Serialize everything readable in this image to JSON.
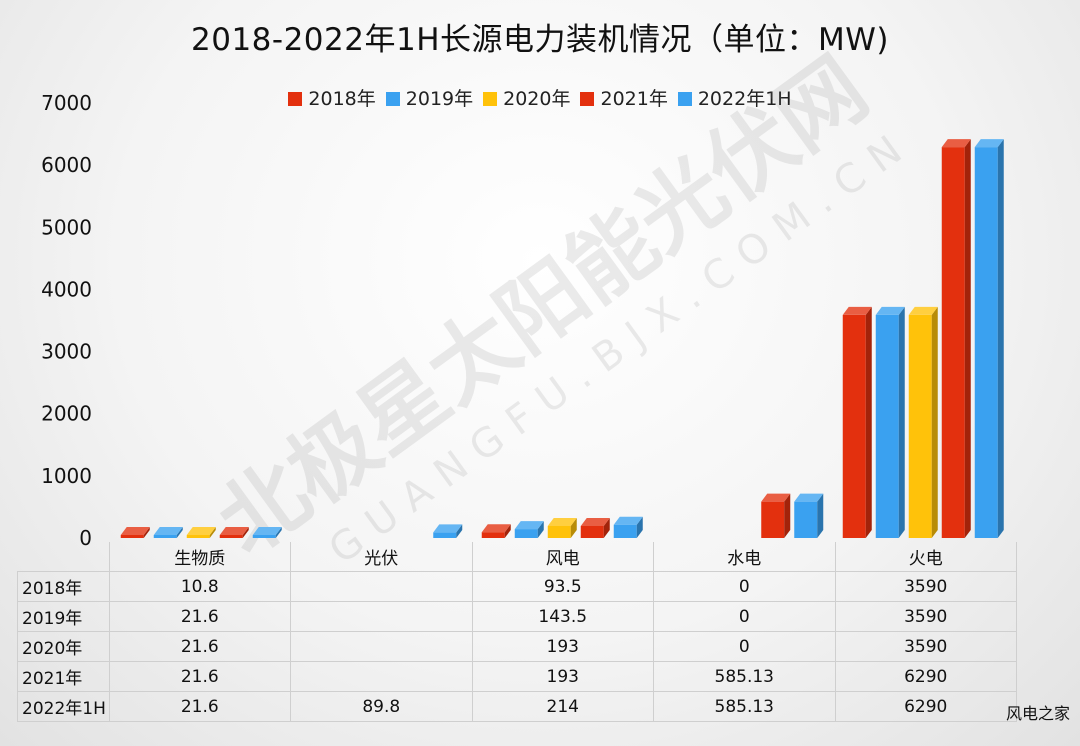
{
  "chart_data": {
    "type": "bar",
    "title": "2018-2022年1H长源电力装机情况（单位：MW)",
    "xlabel": "",
    "ylabel": "",
    "categories": [
      "生物质",
      "光伏",
      "风电",
      "水电",
      "火电"
    ],
    "series": [
      {
        "name": "2018年",
        "color": "#e3300e",
        "values": [
          10.8,
          null,
          93.5,
          0,
          3590
        ]
      },
      {
        "name": "2019年",
        "color": "#3aa1f0",
        "values": [
          21.6,
          null,
          143.5,
          0,
          3590
        ]
      },
      {
        "name": "2020年",
        "color": "#ffc20a",
        "values": [
          21.6,
          null,
          193,
          0,
          3590
        ]
      },
      {
        "name": "2021年",
        "color": "#e3300e",
        "values": [
          21.6,
          null,
          193,
          585.13,
          6290
        ]
      },
      {
        "name": "2022年1H",
        "color": "#3aa1f0",
        "values": [
          21.6,
          89.8,
          214,
          585.13,
          6290
        ]
      }
    ],
    "ylim": [
      0,
      7000
    ],
    "yticks": [
      0,
      1000,
      2000,
      3000,
      4000,
      5000,
      6000,
      7000
    ],
    "legend_position": "top",
    "grid": false,
    "table": {
      "columns": [
        "生物质",
        "光伏",
        "风电",
        "水电",
        "火电"
      ],
      "rows": [
        {
          "label": "2018年",
          "cells": [
            "10.8",
            "",
            "93.5",
            "0",
            "3590"
          ]
        },
        {
          "label": "2019年",
          "cells": [
            "21.6",
            "",
            "143.5",
            "0",
            "3590"
          ]
        },
        {
          "label": "2020年",
          "cells": [
            "21.6",
            "",
            "193",
            "0",
            "3590"
          ]
        },
        {
          "label": "2021年",
          "cells": [
            "21.6",
            "",
            "193",
            "585.13",
            "6290"
          ]
        },
        {
          "label": "2022年1H",
          "cells": [
            "21.6",
            "89.8",
            "214",
            "585.13",
            "6290"
          ]
        }
      ]
    }
  },
  "watermark": {
    "text": "北极星太阳能光伏网",
    "subtext": "GUANGFU.BJX.COM.CN"
  },
  "footer": {
    "source": "风电之家"
  }
}
